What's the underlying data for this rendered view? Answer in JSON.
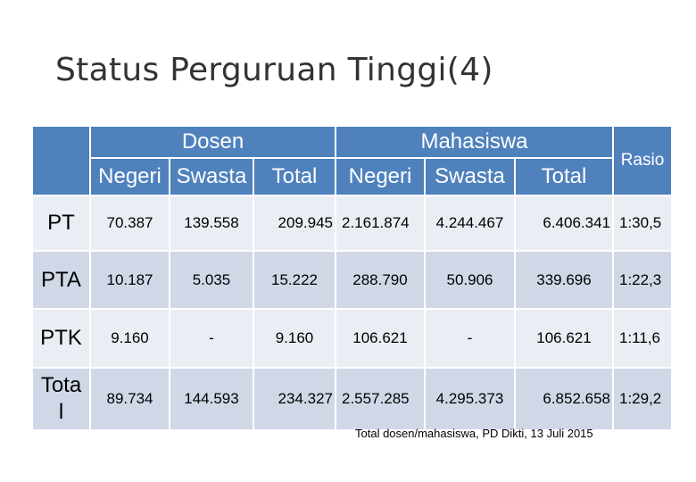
{
  "title": "Status Perguruan Tinggi(4)",
  "table": {
    "group_dosen": "Dosen",
    "group_mahasiswa": "Mahasiswa",
    "col_rasio": "Rasio",
    "sub_headers": [
      "Negeri",
      "Swasta",
      "Total",
      "Negeri",
      "Swasta",
      "Total"
    ],
    "rows": [
      {
        "label": "PT",
        "values": [
          "70.387",
          "139.558",
          "209.945",
          "2.161.874",
          "4.244.467",
          "6.406.341",
          "1:30,5"
        ]
      },
      {
        "label": "PTA",
        "values": [
          "10.187",
          "5.035",
          "15.222",
          "288.790",
          "50.906",
          "339.696",
          "1:22,3"
        ]
      },
      {
        "label": "PTK",
        "values": [
          "9.160",
          "-",
          "9.160",
          "106.621",
          "-",
          "106.621",
          "1:11,6"
        ]
      },
      {
        "label": "Tota\nl",
        "values": [
          "89.734",
          "144.593",
          "234.327",
          "2.557.285",
          "4.295.373",
          "6.852.658",
          "1:29,2"
        ]
      }
    ]
  },
  "footnote": "Total dosen/mahasiswa, PD Dikti, 13 Juli 2015"
}
